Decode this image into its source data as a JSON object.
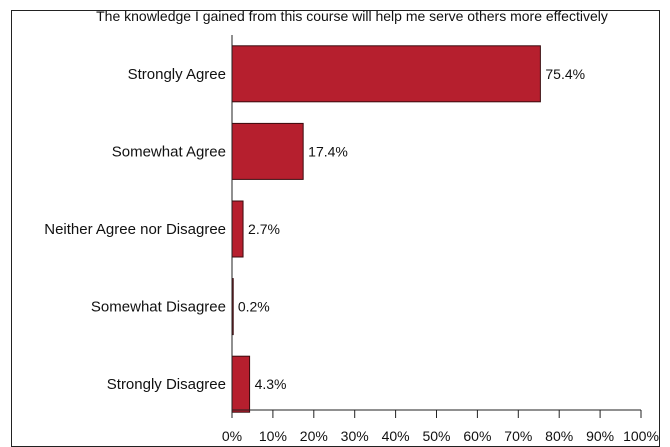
{
  "chart_data": {
    "type": "bar",
    "orientation": "horizontal",
    "title": "The knowledge I gained from this course will help me serve others more effectively",
    "categories": [
      "Strongly Agree",
      "Somewhat Agree",
      "Neither Agree nor Disagree",
      "Somewhat Disagree",
      "Strongly Disagree"
    ],
    "values": [
      75.4,
      17.4,
      2.7,
      0.2,
      4.3
    ],
    "value_labels": [
      "75.4%",
      "17.4%",
      "2.7%",
      "0.2%",
      "4.3%"
    ],
    "xlim": [
      0,
      100
    ],
    "x_ticks": [
      "0%",
      "10%",
      "20%",
      "30%",
      "40%",
      "50%",
      "60%",
      "70%",
      "80%",
      "90%",
      "100%"
    ],
    "xlabel": "",
    "ylabel": "",
    "grid": false,
    "legend": "none",
    "bar_color": "#b61f2e",
    "bar_edge_color": "#3a0a0e"
  }
}
